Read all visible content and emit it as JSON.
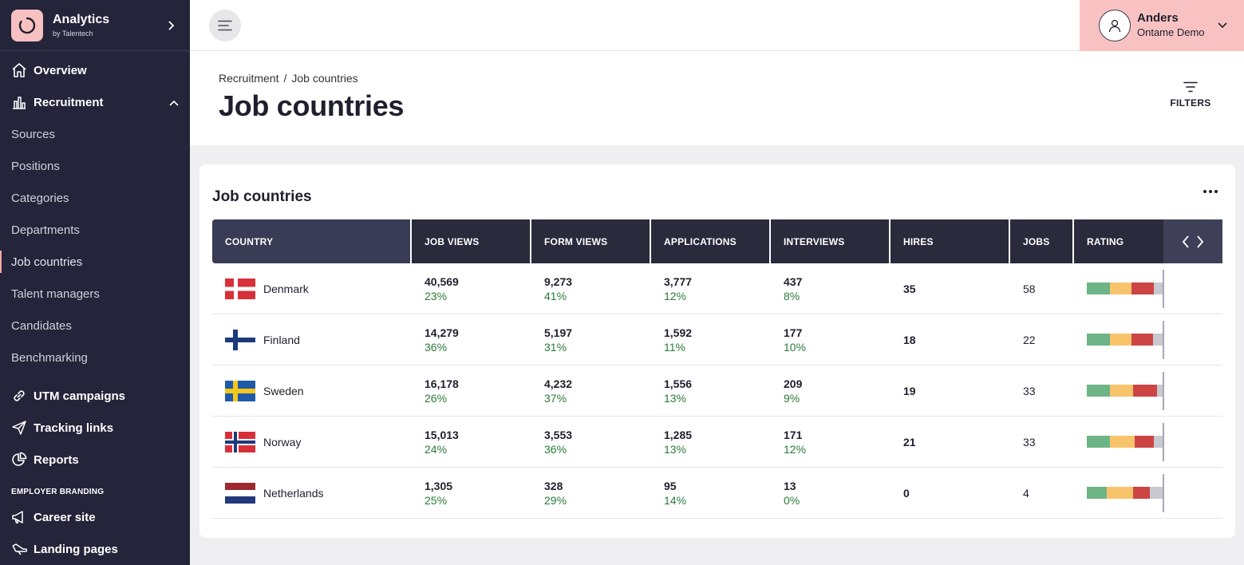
{
  "brand": {
    "title": "Analytics",
    "subtitle": "by Talentech"
  },
  "nav": {
    "overview": "Overview",
    "recruitment": "Recruitment",
    "sub_items": [
      "Sources",
      "Positions",
      "Categories",
      "Departments",
      "Job countries",
      "Talent managers",
      "Candidates",
      "Benchmarking"
    ],
    "utm": "UTM campaigns",
    "tracking": "Tracking links",
    "reports": "Reports",
    "section_employer": "EMPLOYER BRANDING",
    "career": "Career site",
    "landing": "Landing pages"
  },
  "user": {
    "name": "Anders",
    "org": "Ontame Demo"
  },
  "breadcrumb": {
    "parent": "Recruitment",
    "separator": "/",
    "current": "Job countries"
  },
  "page_title": "Job countries",
  "filters_label": "FILTERS",
  "card": {
    "title": "Job countries"
  },
  "table": {
    "headers": [
      "COUNTRY",
      "JOB VIEWS",
      "FORM VIEWS",
      "APPLICATIONS",
      "INTERVIEWS",
      "HIRES",
      "JOBS",
      "RATING"
    ],
    "rows": [
      {
        "country": "Denmark",
        "flag": "denmark",
        "job_views": "40,569",
        "job_views_pct": "23%",
        "form_views": "9,273",
        "form_views_pct": "41%",
        "applications": "3,777",
        "applications_pct": "12%",
        "interviews": "437",
        "interviews_pct": "8%",
        "hires": "35",
        "jobs": "58",
        "rating": [
          0.3,
          0.28,
          0.3,
          0.12
        ]
      },
      {
        "country": "Finland",
        "flag": "finland",
        "job_views": "14,279",
        "job_views_pct": "36%",
        "form_views": "5,197",
        "form_views_pct": "31%",
        "applications": "1,592",
        "applications_pct": "11%",
        "interviews": "177",
        "interviews_pct": "10%",
        "hires": "18",
        "jobs": "22",
        "rating": [
          0.3,
          0.28,
          0.28,
          0.14
        ]
      },
      {
        "country": "Sweden",
        "flag": "sweden",
        "job_views": "16,178",
        "job_views_pct": "26%",
        "form_views": "4,232",
        "form_views_pct": "37%",
        "applications": "1,556",
        "applications_pct": "13%",
        "interviews": "209",
        "interviews_pct": "9%",
        "hires": "19",
        "jobs": "33",
        "rating": [
          0.3,
          0.3,
          0.32,
          0.08
        ]
      },
      {
        "country": "Norway",
        "flag": "norway",
        "job_views": "15,013",
        "job_views_pct": "24%",
        "form_views": "3,553",
        "form_views_pct": "36%",
        "applications": "1,285",
        "applications_pct": "13%",
        "interviews": "171",
        "interviews_pct": "12%",
        "hires": "21",
        "jobs": "33",
        "rating": [
          0.3,
          0.32,
          0.26,
          0.12
        ]
      },
      {
        "country": "Netherlands",
        "flag": "netherlands",
        "job_views": "1,305",
        "job_views_pct": "25%",
        "form_views": "328",
        "form_views_pct": "29%",
        "applications": "95",
        "applications_pct": "14%",
        "interviews": "13",
        "interviews_pct": "0%",
        "hires": "0",
        "jobs": "4",
        "rating": [
          0.26,
          0.34,
          0.22,
          0.18
        ]
      }
    ]
  },
  "colors": {
    "sidebar_bg": "#24243a",
    "accent_pink": "#f9c2c2",
    "table_header": "#2a2a3d",
    "percent_green": "#2a7a38",
    "rating_green": "#6db487",
    "rating_yellow": "#f7c46c",
    "rating_red": "#cc4444",
    "rating_grey": "#c8c8d0"
  }
}
